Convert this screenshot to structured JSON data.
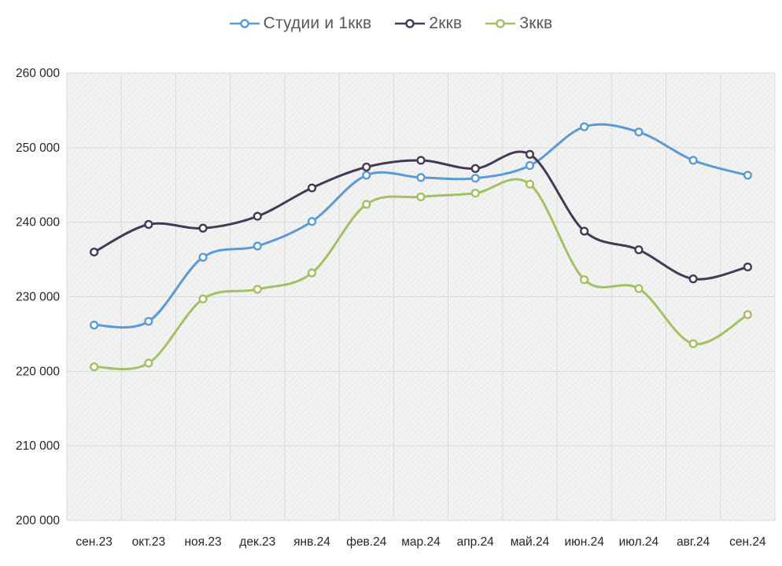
{
  "chart_data": {
    "type": "line",
    "title": "",
    "categories": [
      "сен.23",
      "окт.23",
      "ноя.23",
      "дек.23",
      "янв.24",
      "фев.24",
      "мар.24",
      "апр.24",
      "май.24",
      "июн.24",
      "июл.24",
      "авг.24",
      "сен.24"
    ],
    "series": [
      {
        "name": "Студии и 1ккв",
        "color": "#5B9BD5",
        "values": [
          226200,
          226700,
          235300,
          236800,
          240100,
          246300,
          246000,
          245900,
          247600,
          252800,
          252100,
          248300,
          246300
        ]
      },
      {
        "name": "2ккв",
        "color": "#453A55",
        "values": [
          236000,
          239700,
          239200,
          240800,
          244600,
          247400,
          248300,
          247200,
          249100,
          238800,
          236300,
          232400,
          234000
        ]
      },
      {
        "name": "3ккв",
        "color": "#A3C162",
        "values": [
          220600,
          221100,
          229700,
          231000,
          233200,
          242400,
          243400,
          243900,
          245100,
          232300,
          231100,
          223700,
          227600
        ]
      }
    ],
    "xlabel": "",
    "ylabel": "",
    "ylim": [
      200000,
      260000
    ],
    "ytick_step": 10000,
    "ytick_labels": [
      "200 000",
      "210 000",
      "220 000",
      "230 000",
      "240 000",
      "250 000",
      "260 000"
    ],
    "grid": true,
    "legend_position": "top",
    "marker": "open-circle",
    "line_smooth": true
  },
  "style": {
    "plot_background": "#f4f4f4",
    "hatch_color_1": "#e8e8e8",
    "hatch_color_2": "#eeeeee",
    "gridline_color": "#dadada",
    "plot_border_color": "#d9d9d9",
    "axis_text_color": "#262626",
    "legend_text_color": "#595959"
  }
}
